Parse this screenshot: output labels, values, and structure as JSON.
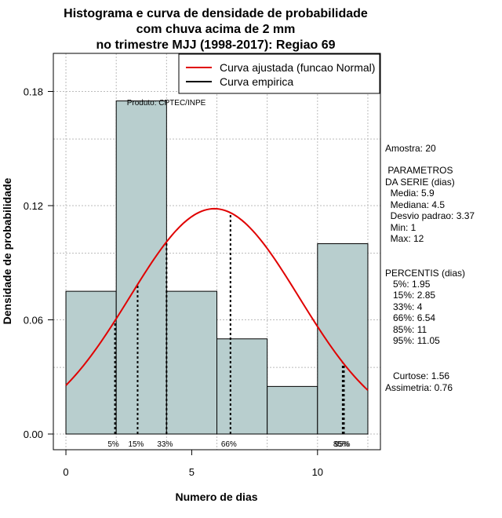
{
  "chart_data": {
    "type": "bar",
    "title_lines": [
      "Histograma e curva de densidade de probabilidade",
      "com chuva acima de 2 mm",
      "no trimestre MJJ (1998-2017): Regiao 69"
    ],
    "xlabel": "Numero de dias",
    "ylabel": "Densidade de probabilidade",
    "xlim": [
      -0.5,
      12.5
    ],
    "ylim": [
      0,
      0.2
    ],
    "x_ticks": [
      0,
      5,
      10
    ],
    "x_tick_labels": [
      "0",
      "5",
      "10"
    ],
    "y_ticks": [
      0.0,
      0.06,
      0.12,
      0.18
    ],
    "y_tick_labels": [
      "0.00",
      "0.06",
      "0.12",
      "0.18"
    ],
    "bins": [
      {
        "start": 0,
        "end": 2,
        "density": 0.075
      },
      {
        "start": 2,
        "end": 4,
        "density": 0.175
      },
      {
        "start": 4,
        "end": 6,
        "density": 0.075
      },
      {
        "start": 6,
        "end": 8,
        "density": 0.05
      },
      {
        "start": 8,
        "end": 10,
        "density": 0.025
      },
      {
        "start": 10,
        "end": 12,
        "density": 0.1
      }
    ],
    "bar_color": "#b8cece",
    "normal_curve": {
      "mean": 5.9,
      "sd": 3.37,
      "color": "#e00000"
    },
    "percentile_lines": [
      {
        "label": "5%",
        "x": 1.95
      },
      {
        "label": "15%",
        "x": 2.85
      },
      {
        "label": "33%",
        "x": 4
      },
      {
        "label": "66%",
        "x": 6.54
      },
      {
        "label": "85%",
        "x": 11
      },
      {
        "label": "95%",
        "x": 11.05
      }
    ],
    "legend": {
      "position": "top-right",
      "entries": [
        {
          "label": "Curva ajustada (funcao Normal)",
          "color": "#e00000"
        },
        {
          "label": "Curva empirica",
          "color": "#000000"
        }
      ]
    },
    "source_label": "Produto: CPTEC/INPE"
  },
  "side_panel": {
    "sample": "Amostra: 20",
    "params_title_1": " PARAMETROS",
    "params_title_2": "DA SERIE (dias)",
    "params": [
      "  Media: 5.9",
      "  Mediana: 4.5",
      "  Desvio padrao: 3.37",
      "  Min: 1",
      "  Max: 12"
    ],
    "percentis_title": "PERCENTIS (dias)",
    "percentis": [
      "   5%: 1.95",
      "   15%: 2.85",
      "   33%: 4",
      "   66%: 6.54",
      "   85%: 11",
      "   95%: 11.05"
    ],
    "curtose": "   Curtose: 1.56",
    "assimetria": "Assimetria: 0.76"
  }
}
